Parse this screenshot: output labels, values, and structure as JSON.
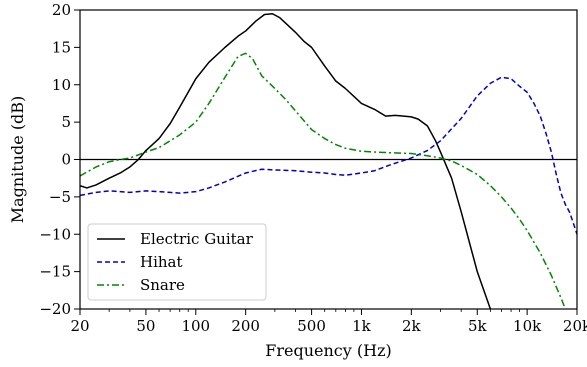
{
  "chart_data": {
    "type": "line",
    "title": "",
    "xlabel": "Frequency (Hz)",
    "ylabel": "Magnitude (dB)",
    "xscale": "log",
    "xlim": [
      20,
      20000
    ],
    "ylim": [
      -20,
      20
    ],
    "xticks": [
      20,
      50,
      100,
      200,
      500,
      1000,
      2000,
      5000,
      10000,
      20000
    ],
    "xtick_labels": [
      "20",
      "50",
      "100",
      "200",
      "500",
      "1k",
      "2k",
      "5k",
      "10k",
      "20k"
    ],
    "yticks": [
      -20,
      -15,
      -10,
      -5,
      0,
      5,
      10,
      15,
      20
    ],
    "ytick_labels": [
      "−20",
      "−15",
      "−10",
      "−5",
      "0",
      "5",
      "10",
      "15",
      "20"
    ],
    "grid": false,
    "reference_line": 0,
    "legend_position": "lower-left",
    "series": [
      {
        "name": "Electric Guitar",
        "color": "#000000",
        "dash": "solid",
        "x": [
          20,
          22,
          25,
          30,
          35,
          40,
          45,
          50,
          60,
          70,
          80,
          100,
          120,
          150,
          180,
          200,
          230,
          260,
          290,
          320,
          350,
          400,
          450,
          500,
          600,
          700,
          800,
          1000,
          1200,
          1400,
          1600,
          1800,
          2000,
          2200,
          2500,
          2800,
          3000,
          3500,
          4000,
          5000,
          6000
        ],
        "y": [
          -3.5,
          -3.8,
          -3.4,
          -2.5,
          -1.8,
          -1.0,
          0.0,
          1.2,
          2.8,
          4.8,
          7.0,
          10.8,
          13.0,
          15.0,
          16.5,
          17.2,
          18.5,
          19.4,
          19.5,
          19.0,
          18.2,
          17.0,
          15.8,
          15.0,
          12.5,
          10.5,
          9.5,
          7.5,
          6.7,
          5.8,
          5.9,
          5.8,
          5.7,
          5.4,
          4.5,
          2.5,
          1.0,
          -2.5,
          -7.0,
          -15.0,
          -20.0
        ]
      },
      {
        "name": "Hihat",
        "color": "#0000cc",
        "dash": "dashed",
        "x": [
          20,
          25,
          30,
          35,
          40,
          50,
          60,
          70,
          80,
          100,
          120,
          150,
          200,
          250,
          300,
          400,
          500,
          600,
          700,
          800,
          1000,
          1200,
          1500,
          2000,
          2500,
          3000,
          4000,
          5000,
          6000,
          7000,
          8000,
          9000,
          10000,
          11000,
          12000,
          13000,
          14000,
          15000,
          16000,
          17000,
          18000,
          19000,
          20000
        ],
        "y": [
          -4.8,
          -4.4,
          -4.2,
          -4.3,
          -4.4,
          -4.2,
          -4.3,
          -4.4,
          -4.5,
          -4.3,
          -3.8,
          -3.0,
          -1.8,
          -1.3,
          -1.4,
          -1.5,
          -1.7,
          -1.8,
          -2.0,
          -2.1,
          -1.8,
          -1.5,
          -0.7,
          0.2,
          1.2,
          2.5,
          5.5,
          8.5,
          10.2,
          11.0,
          10.8,
          9.8,
          9.0,
          7.5,
          5.8,
          3.5,
          1.0,
          -2.0,
          -4.5,
          -6.0,
          -7.0,
          -8.5,
          -10.0
        ]
      },
      {
        "name": "Snare",
        "color": "#008800",
        "dash": "dashdot",
        "x": [
          20,
          25,
          30,
          35,
          40,
          50,
          60,
          70,
          80,
          100,
          120,
          150,
          180,
          200,
          220,
          250,
          300,
          350,
          400,
          500,
          600,
          700,
          800,
          1000,
          1200,
          1500,
          2000,
          2500,
          3000,
          3500,
          4000,
          5000,
          6000,
          7000,
          8000,
          9000,
          10000,
          12000,
          14000,
          16000,
          17000
        ],
        "y": [
          -2.2,
          -1.0,
          -0.3,
          0.0,
          0.2,
          1.0,
          1.6,
          2.5,
          3.3,
          5.0,
          7.5,
          11.0,
          13.8,
          14.2,
          13.5,
          11.2,
          9.5,
          8.0,
          6.5,
          4.0,
          2.8,
          2.0,
          1.5,
          1.1,
          1.0,
          0.9,
          0.8,
          0.5,
          0.2,
          -0.2,
          -0.8,
          -2.0,
          -3.5,
          -5.0,
          -6.5,
          -8.0,
          -9.5,
          -12.5,
          -15.5,
          -18.5,
          -20.0
        ]
      }
    ]
  }
}
